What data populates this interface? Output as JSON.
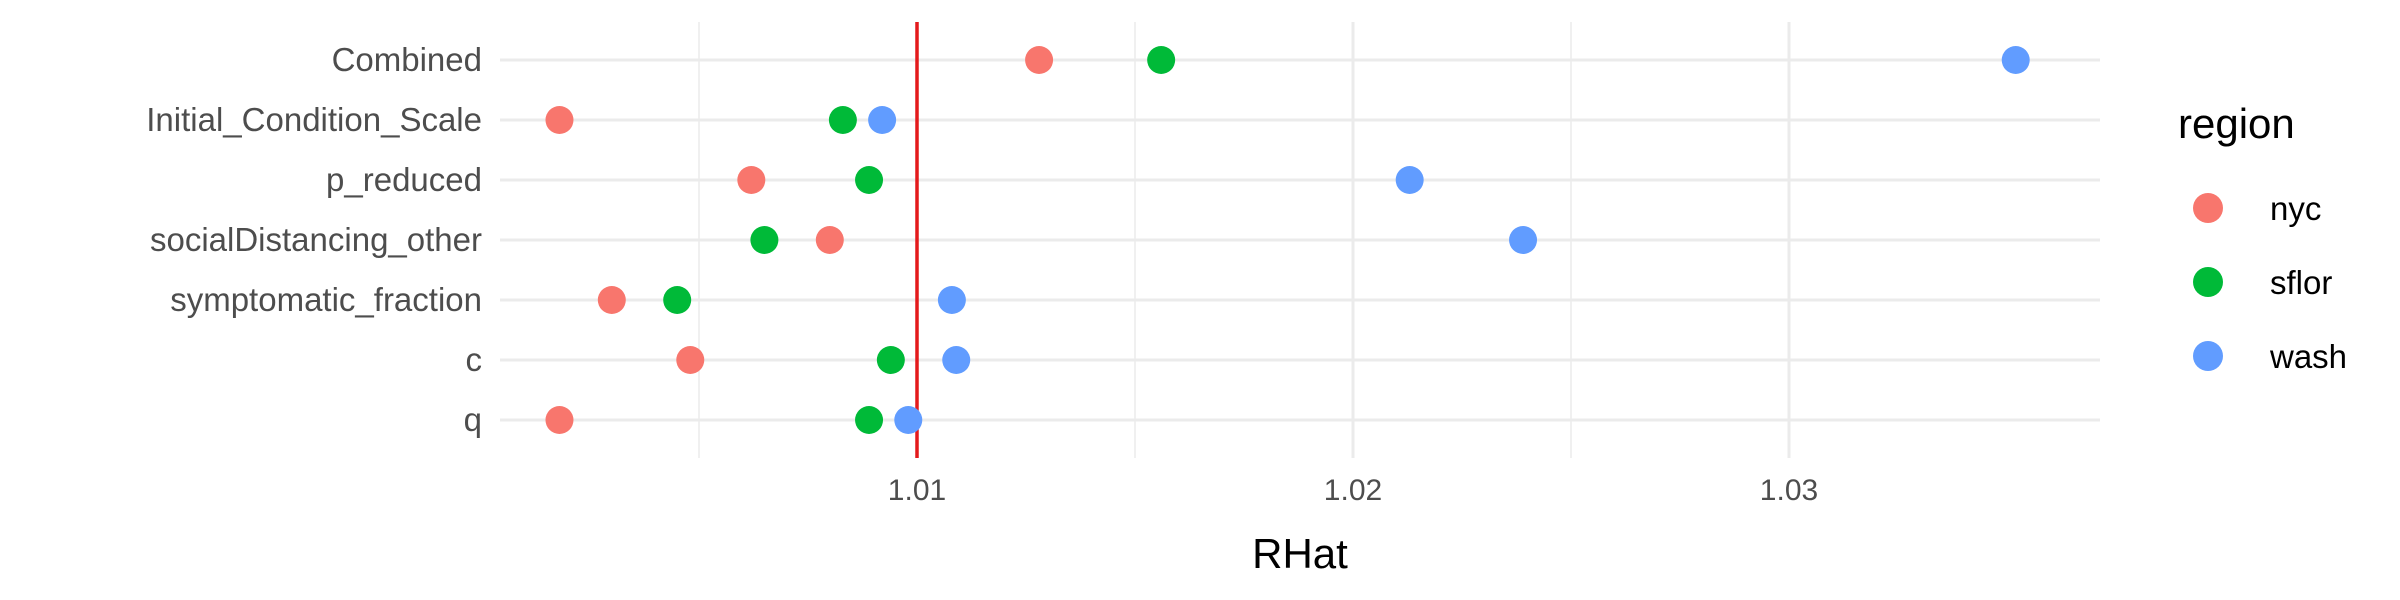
{
  "chart_data": {
    "type": "scatter",
    "title": "",
    "xlabel": "RHat",
    "ylabel": "",
    "xlim": [
      1.0,
      1.038
    ],
    "x_ticks": [
      "1.01",
      "1.02",
      "1.03"
    ],
    "x_tick_values": [
      1.01,
      1.02,
      1.03
    ],
    "categories": [
      "Combined",
      "Initial_Condition_Scale",
      "p_reduced",
      "socialDistancing_other",
      "symptomatic_fraction",
      "c",
      "q"
    ],
    "series": [
      {
        "name": "nyc",
        "color": "#F8766D",
        "values": [
          1.0128,
          1.0018,
          1.0062,
          1.008,
          1.003,
          1.0048,
          1.0018
        ]
      },
      {
        "name": "sflor",
        "color": "#00BA38",
        "values": [
          1.0156,
          1.0083,
          1.0089,
          1.0065,
          1.0045,
          1.0094,
          1.0089
        ]
      },
      {
        "name": "wash",
        "color": "#619CFF",
        "values": [
          1.0352,
          1.0092,
          1.0213,
          1.0239,
          1.0108,
          1.0109,
          1.0098
        ]
      }
    ],
    "reference_line": {
      "x": 1.01,
      "color": "#E41A1C"
    },
    "legend": {
      "title": "region",
      "placement": "right"
    },
    "grid": true
  }
}
